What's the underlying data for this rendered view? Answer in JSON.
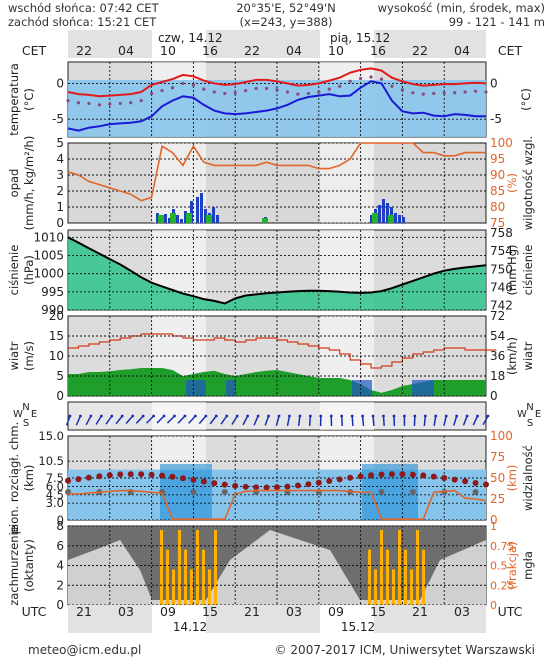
{
  "header": {
    "sunrise": "wschód słońca: 07:42 CET",
    "sunset": "zachód słońca: 15:21 CET",
    "coords": "20°35'E, 52°49'N",
    "grid": "(x=243, y=388)",
    "elev_label": "wysokość (min, środek, max)",
    "elev_values": "99 - 121 - 141 m"
  },
  "top_axis": {
    "tz": "CET",
    "day1": "czw, 14.12",
    "day2": "pią, 15.12",
    "hours": [
      "22",
      "04",
      "10",
      "16",
      "22",
      "04",
      "10",
      "16",
      "22",
      "04"
    ]
  },
  "bottom_axis": {
    "tz": "UTC",
    "hours": [
      "21",
      "03",
      "09",
      "15",
      "21",
      "03",
      "09",
      "15",
      "21",
      "03"
    ],
    "day1": "14.12",
    "day2": "15.12"
  },
  "footer": {
    "email": "meteo@icm.edu.pl",
    "copyright": "© 2007-2017 ICM, Uniwersytet Warszawski"
  },
  "colors": {
    "sky": "#87c4ec",
    "temp_line": "#e31a1c",
    "dew_line": "#1a1ad6",
    "humidity_line": "#e0662a",
    "pressure_fill": "#2ec48a",
    "wind_fill": "#1f9e2b",
    "fog": "#ffb000"
  },
  "chart_data": [
    {
      "type": "line",
      "panel": "temperature",
      "ylabel": "temperatura (°C)",
      "ylabel_right": "(°C)",
      "ylim": [
        -7.5,
        3
      ],
      "yticks": [
        -5,
        0
      ],
      "series": [
        {
          "values": [
            -1.2,
            -1.5,
            -1.6,
            -1.8,
            -1.7,
            -1.6,
            -1.5,
            -1.2,
            -0.2,
            0.2,
            0.6,
            1.2,
            1.0,
            0.4,
            0.0,
            -0.2,
            -0.1,
            0.2,
            0.5,
            0.5,
            0.3,
            0.0,
            -0.3,
            -0.2,
            0.0,
            0.4,
            0.8,
            1.5,
            1.9,
            2.1,
            1.8,
            0.8,
            0.3,
            -0.1,
            -0.3,
            -0.2,
            -0.1,
            -0.1,
            0.0,
            0.1,
            0.0
          ]
        },
        {
          "values": [
            -6.3,
            -6.6,
            -6.2,
            -6.0,
            -5.7,
            -5.6,
            -5.5,
            -5.3,
            -4.6,
            -3.2,
            -2.4,
            -1.8,
            -2.0,
            -3.0,
            -3.8,
            -4.2,
            -4.3,
            -4.2,
            -4.0,
            -3.8,
            -3.5,
            -3.0,
            -2.3,
            -1.9,
            -1.7,
            -1.5,
            -1.8,
            -1.7,
            -0.6,
            0.3,
            0.0,
            -2.4,
            -3.9,
            -4.2,
            -4.1,
            -4.5,
            -4.6,
            -4.3,
            -4.4,
            -4.6,
            -4.6
          ]
        }
      ]
    },
    {
      "type": "line",
      "panel": "precipitation",
      "ylabel": "opad (mm/h, kg/m²/h)",
      "ylabel_right": "wilgotność wzgl. (%)",
      "ylim": [
        0,
        5
      ],
      "ylim_right": [
        75,
        100
      ],
      "yticks": [
        0,
        1,
        2,
        3,
        4,
        5
      ],
      "yticks_right": [
        75,
        80,
        85,
        90,
        95,
        100
      ],
      "series": [
        {
          "values": [
            91,
            90,
            88,
            87,
            86,
            85,
            84,
            82,
            83,
            99,
            97,
            93,
            99,
            94,
            93,
            93,
            93,
            93,
            93,
            94,
            93,
            93,
            93,
            93,
            92,
            92,
            93,
            95,
            100,
            100,
            100,
            100,
            100,
            100,
            97,
            97,
            96,
            96,
            97,
            97,
            97
          ]
        }
      ]
    },
    {
      "type": "area",
      "panel": "pressure",
      "ylabel": "ciśnienie (hPa)",
      "ylabel_right": "(mm Hg) ciśnienie",
      "ylim": [
        990,
        1012
      ],
      "yticks": [
        990,
        995,
        1000,
        1005,
        1010
      ],
      "yticks_right": [
        742,
        746,
        750,
        754,
        758
      ],
      "series": [
        {
          "values": [
            1010,
            1008.5,
            1007,
            1005.5,
            1004,
            1002.5,
            1000.8,
            999,
            997.5,
            996.5,
            995.5,
            994.5,
            993.8,
            993,
            992.5,
            991.8,
            993.2,
            994,
            994.3,
            994.6,
            994.8,
            995,
            995.2,
            995.3,
            995.3,
            995.2,
            995,
            994.8,
            994.7,
            994.8,
            995.2,
            996,
            997,
            998,
            999,
            1000,
            1000.8,
            1001.3,
            1001.7,
            1002,
            1002.3
          ]
        }
      ]
    },
    {
      "type": "area",
      "panel": "wind",
      "ylabel": "wiatr (m/s)",
      "ylabel_right": "(km/h) wiatr",
      "ylim": [
        0,
        20
      ],
      "yticks": [
        0,
        5,
        10,
        15,
        20
      ],
      "yticks_right": [
        0,
        18,
        36,
        54,
        72
      ],
      "series": [
        {
          "values": [
            12,
            12.5,
            13,
            13.5,
            14,
            14.5,
            15,
            15.5,
            15.5,
            15.5,
            15,
            14.5,
            14,
            14,
            14.5,
            14,
            13.5,
            14,
            14.5,
            14.5,
            14,
            13.5,
            13,
            12.5,
            12,
            11.5,
            10.5,
            9,
            8,
            7,
            7.5,
            8.5,
            9.5,
            10.5,
            11,
            11.5,
            12,
            12,
            11.5,
            11.5,
            11.5
          ]
        },
        {
          "values": [
            5.5,
            5.5,
            6,
            6,
            6.2,
            6.5,
            6.7,
            7,
            7,
            7,
            6.5,
            5,
            5.5,
            6,
            6.3,
            5.5,
            5,
            5.5,
            6,
            6.3,
            6.5,
            6,
            5.5,
            5,
            4.5,
            4.5,
            4.5,
            4,
            3,
            1.5,
            0.8,
            1.5,
            2.5,
            3,
            3.5,
            4,
            4,
            4,
            4,
            4,
            4
          ]
        }
      ]
    },
    {
      "type": "scatter",
      "panel": "visibility",
      "ylabel": "pion. rozciągł. chm. (km)",
      "ylabel_right": "(km) widzialność",
      "ylim": [
        0,
        15
      ],
      "ylim_right": [
        0,
        100
      ],
      "yticks": [
        0,
        3,
        4.5,
        6,
        7.5,
        10.5,
        15
      ],
      "yticks_labels": [
        "0",
        "3.0",
        "4.5",
        "6.0",
        "7.5",
        "10.5",
        "15.0"
      ],
      "yticks_right": [
        0,
        25,
        50,
        75,
        100
      ],
      "series": [
        {
          "values": [
            31,
            31,
            32,
            33,
            34,
            35,
            35,
            34,
            33,
            32,
            1,
            1,
            1,
            1,
            1,
            1,
            31,
            34,
            35,
            35,
            35,
            35,
            35,
            35,
            35,
            35,
            35,
            34,
            33,
            33,
            1,
            1,
            1,
            1,
            1,
            33,
            34,
            35,
            26,
            25,
            23
          ]
        }
      ]
    },
    {
      "type": "bar",
      "panel": "cloud-fog",
      "ylabel": "zachmurzenie (oktanty)",
      "ylabel_right": "mgła (frakcja)",
      "ylim": [
        0,
        8
      ],
      "ylim_right": [
        0,
        1
      ],
      "yticks": [
        0,
        2,
        4,
        6,
        8
      ],
      "yticks_right": [
        0,
        0.25,
        0.5,
        0.75,
        1
      ]
    }
  ]
}
